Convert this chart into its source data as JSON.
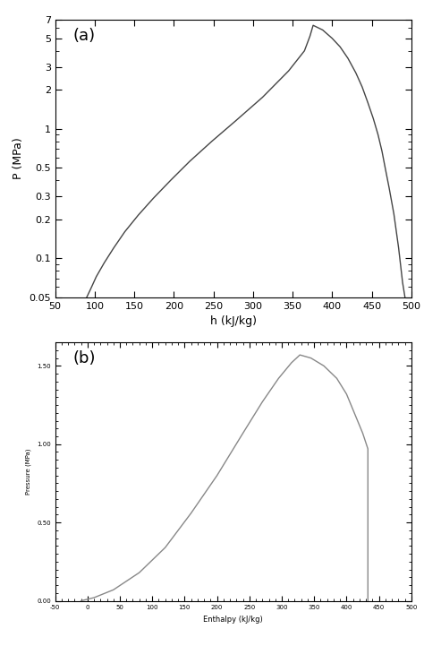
{
  "chart_a": {
    "label": "(a)",
    "xlabel": "h (kJ/kg)",
    "ylabel": "P (MPa)",
    "xlim": [
      50,
      500
    ],
    "ylim_log": [
      0.05,
      7
    ],
    "yticks": [
      0.05,
      0.1,
      0.2,
      0.3,
      0.5,
      1,
      2,
      3,
      5,
      7
    ],
    "ytick_labels": [
      "0.05",
      "0.1",
      "0.2",
      "0.3",
      "0.5",
      "1",
      "2",
      "3",
      "5",
      "7"
    ],
    "xticks": [
      50,
      100,
      150,
      200,
      250,
      300,
      350,
      400,
      450,
      500
    ],
    "line_color": "#444444",
    "sat_liquid_h": [
      90,
      95,
      102,
      112,
      124,
      138,
      155,
      174,
      196,
      220,
      248,
      278,
      312,
      345,
      365,
      372,
      376
    ],
    "sat_liquid_p": [
      0.05,
      0.058,
      0.072,
      0.092,
      0.12,
      0.16,
      0.215,
      0.29,
      0.4,
      0.56,
      0.8,
      1.15,
      1.75,
      2.8,
      4.0,
      5.2,
      6.3
    ],
    "sat_vapor_h": [
      376,
      388,
      400,
      410,
      420,
      430,
      438,
      445,
      452,
      458,
      463,
      467,
      472,
      478,
      484,
      489,
      492
    ],
    "sat_vapor_p": [
      6.3,
      5.8,
      5.0,
      4.3,
      3.5,
      2.7,
      2.1,
      1.6,
      1.2,
      0.9,
      0.67,
      0.5,
      0.35,
      0.22,
      0.12,
      0.065,
      0.05
    ]
  },
  "chart_b": {
    "label": "(b)",
    "xlabel": "Enthalpy (kJ/kg)",
    "ylabel": "Pressure (MPa)",
    "xlim": [
      -50,
      500
    ],
    "ylim": [
      0.0,
      1.65
    ],
    "ytick_positions": [
      0.0,
      0.5,
      1.0,
      1.5
    ],
    "ytick_labels": [
      "0.00",
      "0.50",
      "1.00",
      "1.50"
    ],
    "xtick_positions": [
      -50,
      0,
      50,
      100,
      150,
      200,
      250,
      300,
      350,
      400,
      450,
      500
    ],
    "line_color": "#888888",
    "sat_liquid_h": [
      -10,
      10,
      40,
      80,
      120,
      160,
      200,
      240,
      270,
      295,
      315,
      328
    ],
    "sat_liquid_p": [
      0.0,
      0.02,
      0.07,
      0.18,
      0.34,
      0.56,
      0.8,
      1.07,
      1.27,
      1.42,
      1.52,
      1.57
    ],
    "sat_vapor_h": [
      328,
      345,
      365,
      385,
      400,
      415,
      425,
      433,
      433
    ],
    "sat_vapor_p": [
      1.57,
      1.55,
      1.5,
      1.42,
      1.32,
      1.17,
      1.07,
      0.97,
      0.0
    ]
  },
  "background_color": "#ffffff",
  "line_width": 1.0,
  "font_size_label": 9,
  "font_size_tick": 8
}
